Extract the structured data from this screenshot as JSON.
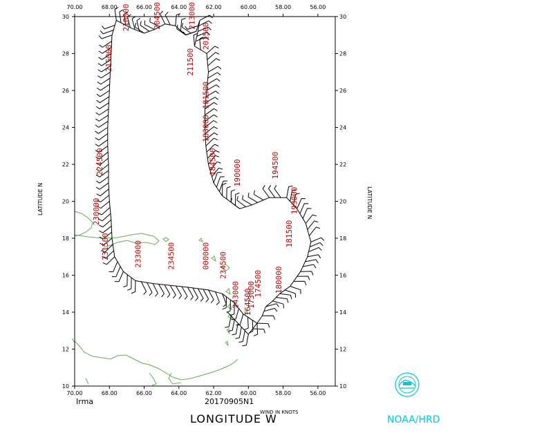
{
  "figure": {
    "storm_name": "Irma",
    "run_id": "20170905N1",
    "x_axis_title": "LONGITUDE W",
    "y_axis_title_left": "LATITUDE N",
    "y_axis_title_right": "LATITUDE N",
    "wind_units_label": "WIND IN KNOTS",
    "agency_label": "NOAA/HRD"
  },
  "colors": {
    "track": "#000000",
    "time_labels": "#c00000",
    "land": "#66aa55",
    "logo": "#00c8d8"
  },
  "icons": {
    "logo": "noaa-logo-icon"
  },
  "chart_data": {
    "type": "map",
    "title": "",
    "xlabel": "LONGITUDE W",
    "ylabel": "LATITUDE N",
    "xlim": [
      70,
      55
    ],
    "ylim": [
      10,
      30
    ],
    "x_tick_labels": [
      "70.00",
      "68.00",
      "66.00",
      "64.00",
      "62.00",
      "60.00",
      "58.00",
      "56.00"
    ],
    "y_tick_labels": [
      "10",
      "12",
      "14",
      "16",
      "18",
      "20",
      "22",
      "24",
      "26",
      "28",
      "30"
    ],
    "grid": false,
    "flight_track": [
      [
        59.5,
        13.4
      ],
      [
        60.3,
        13.9
      ],
      [
        60.8,
        14.5
      ],
      [
        61.5,
        15.0
      ],
      [
        62.3,
        15.2
      ],
      [
        63.5,
        15.35
      ],
      [
        64.5,
        15.45
      ],
      [
        65.5,
        15.55
      ],
      [
        66.5,
        15.7
      ],
      [
        67.2,
        16.2
      ],
      [
        67.7,
        17.0
      ],
      [
        67.85,
        18.0
      ],
      [
        67.9,
        19.0
      ],
      [
        68.0,
        20.0
      ],
      [
        68.05,
        21.0
      ],
      [
        68.05,
        22.0
      ],
      [
        68.1,
        23.0
      ],
      [
        68.1,
        24.0
      ],
      [
        68.05,
        25.0
      ],
      [
        68.0,
        26.0
      ],
      [
        67.95,
        27.0
      ],
      [
        67.9,
        28.0
      ],
      [
        67.85,
        29.0
      ],
      [
        67.6,
        29.8
      ],
      [
        66.8,
        29.4
      ],
      [
        66.0,
        29.1
      ],
      [
        65.4,
        29.3
      ],
      [
        64.8,
        29.6
      ],
      [
        64.2,
        29.5
      ],
      [
        63.6,
        29.0
      ],
      [
        63.0,
        29.2
      ],
      [
        62.8,
        29.8
      ],
      [
        62.9,
        29.2
      ],
      [
        63.1,
        28.4
      ],
      [
        62.4,
        28.0
      ],
      [
        62.3,
        27.0
      ],
      [
        62.4,
        26.0
      ],
      [
        62.5,
        25.0
      ],
      [
        62.5,
        24.0
      ],
      [
        62.45,
        23.0
      ],
      [
        62.3,
        22.0
      ],
      [
        62.0,
        21.0
      ],
      [
        61.5,
        20.3
      ],
      [
        60.5,
        19.6
      ],
      [
        59.8,
        19.8
      ],
      [
        58.8,
        20.2
      ],
      [
        57.8,
        20.2
      ],
      [
        57.2,
        19.6
      ],
      [
        56.7,
        18.8
      ],
      [
        56.4,
        17.8
      ],
      [
        56.6,
        17.0
      ],
      [
        57.0,
        16.2
      ],
      [
        57.6,
        15.4
      ],
      [
        58.2,
        15.0
      ],
      [
        58.6,
        14.6
      ],
      [
        59.0,
        14.3
      ],
      [
        59.2,
        13.8
      ],
      [
        59.5,
        13.4
      ],
      [
        60.0,
        12.8
      ],
      [
        60.6,
        13.4
      ],
      [
        61.2,
        14.0
      ]
    ],
    "time_labels": [
      {
        "text": "215000",
        "lon": 67.9,
        "lat": 27.0
      },
      {
        "text": "210000",
        "lon": 66.9,
        "lat": 29.2
      },
      {
        "text": "204500",
        "lon": 65.1,
        "lat": 29.3
      },
      {
        "text": "213000",
        "lon": 63.1,
        "lat": 29.3
      },
      {
        "text": "201500",
        "lon": 62.3,
        "lat": 28.2
      },
      {
        "text": "211500",
        "lon": 63.2,
        "lat": 26.8
      },
      {
        "text": "181500",
        "lon": 62.3,
        "lat": 25.0
      },
      {
        "text": "183000",
        "lon": 62.3,
        "lat": 23.2
      },
      {
        "text": "184500",
        "lon": 61.9,
        "lat": 21.4
      },
      {
        "text": "190000",
        "lon": 60.5,
        "lat": 20.8
      },
      {
        "text": "194500",
        "lon": 58.3,
        "lat": 21.2
      },
      {
        "text": "193000",
        "lon": 57.2,
        "lat": 19.3
      },
      {
        "text": "181500",
        "lon": 57.5,
        "lat": 17.5
      },
      {
        "text": "224500",
        "lon": 68.4,
        "lat": 21.4
      },
      {
        "text": "230000",
        "lon": 68.6,
        "lat": 18.7
      },
      {
        "text": "231500",
        "lon": 68.1,
        "lat": 16.8
      },
      {
        "text": "233000",
        "lon": 66.2,
        "lat": 16.4
      },
      {
        "text": "234500",
        "lon": 64.3,
        "lat": 16.3
      },
      {
        "text": "000000",
        "lon": 62.3,
        "lat": 16.3
      },
      {
        "text": "234500",
        "lon": 61.3,
        "lat": 15.8
      },
      {
        "text": "243000",
        "lon": 60.6,
        "lat": 14.2
      },
      {
        "text": "174500",
        "lon": 59.3,
        "lat": 14.8
      },
      {
        "text": "173000",
        "lon": 59.7,
        "lat": 14.2
      },
      {
        "text": "180000",
        "lon": 58.1,
        "lat": 15.0
      },
      {
        "text": "164500",
        "lon": 59.9,
        "lat": 13.8
      }
    ]
  }
}
